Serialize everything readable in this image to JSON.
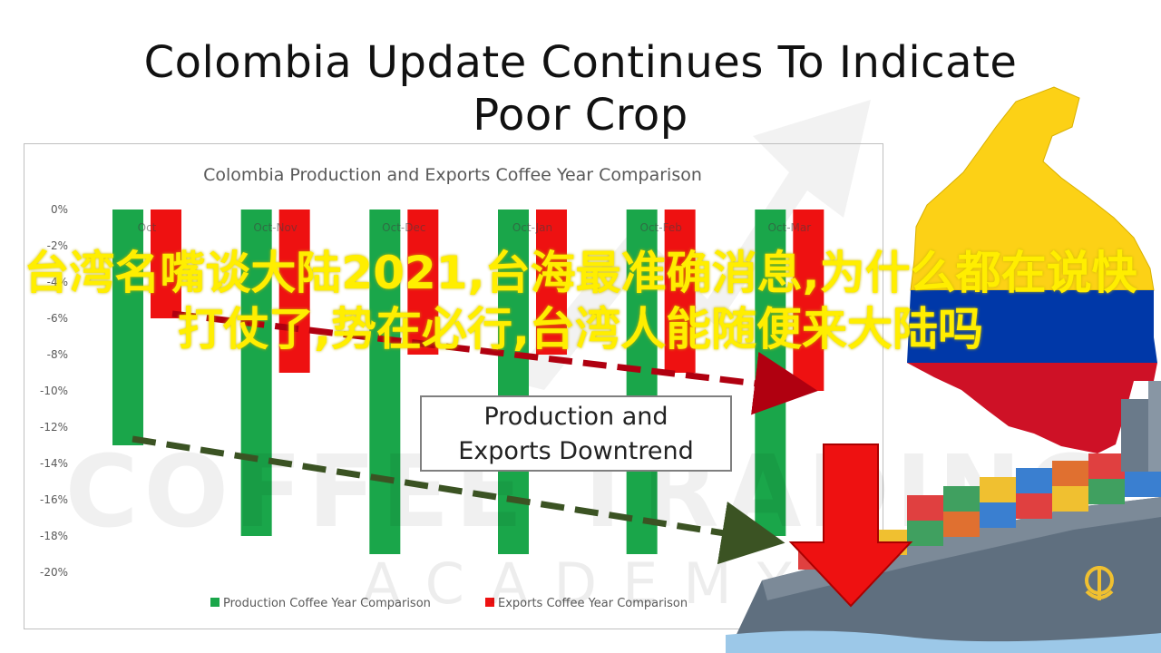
{
  "title_line1": "Colombia Update Continues To Indicate",
  "title_line2": "Poor Crop",
  "callout_line1": "Production and",
  "callout_line2": "Exports Downtrend",
  "watermark_main": "COFFEE TRADING",
  "watermark_sub": "ACADEMY",
  "overlay_caption": "台湾名嘴谈大陆2021,台海最准确消息,为什么都在说快打仗了,势在必行,台湾人能随便来大陆吗",
  "colors": {
    "production": "#1aa64a",
    "exports": "#ee1111",
    "arrow_exports": "#b00010",
    "arrow_production": "#3b5323",
    "caption": "#ffee00"
  },
  "chart_data": {
    "type": "bar",
    "title": "Colombia Production and Exports Coffee Year Comparison",
    "categories": [
      "Oct",
      "Oct-Nov",
      "Oct-Dec",
      "Oct-Jan",
      "Oct-Feb",
      "Oct-Mar"
    ],
    "series": [
      {
        "name": "Production Coffee Year Comparison",
        "values": [
          -13,
          -18,
          -19,
          -19,
          -19,
          -18
        ]
      },
      {
        "name": "Exports Coffee Year Comparison",
        "values": [
          -6,
          -9,
          -8,
          -8,
          -9,
          -10
        ]
      }
    ],
    "ylim": [
      -20,
      0
    ],
    "yticks": [
      "0%",
      "-2%",
      "-4%",
      "-6%",
      "-8%",
      "-10%",
      "-12%",
      "-14%",
      "-16%",
      "-18%",
      "-20%"
    ],
    "legend": "bottom",
    "grid": false
  }
}
